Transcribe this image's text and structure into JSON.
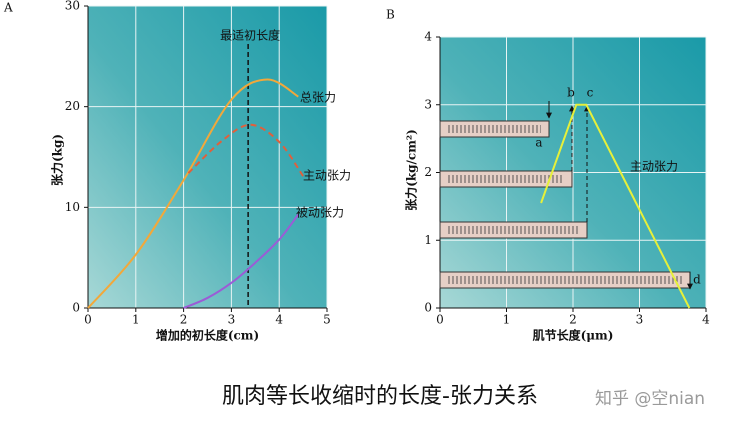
{
  "chart_data": [
    {
      "type": "line",
      "panel_label": "A",
      "smooth": true,
      "grid": true,
      "x_label": "增加的初长度(cm)",
      "y_label": "张力(kg)",
      "xlim": [
        0,
        5
      ],
      "xticks": [
        0,
        1,
        2,
        3,
        4,
        5
      ],
      "ylim": [
        0,
        30
      ],
      "yticks": [
        0,
        10,
        20,
        30
      ],
      "annotations": [
        {
          "text": "最适初长度",
          "x": 3.35
        }
      ],
      "series": [
        {
          "name": "总张力",
          "color": "#f2a83a",
          "style": "solid",
          "x": [
            0,
            1,
            2,
            3,
            3.75,
            4.4
          ],
          "values": [
            0,
            5.3,
            12.7,
            20.7,
            22.7,
            21
          ]
        },
        {
          "name": "主动张力",
          "color": "#e0603c",
          "style": "dashed",
          "x": [
            2.1,
            2.8,
            3.4,
            4,
            4.5
          ],
          "values": [
            13.4,
            16.6,
            18.2,
            16.5,
            13.1
          ]
        },
        {
          "name": "被动张力",
          "color": "#9b5cd6",
          "style": "solid",
          "x": [
            2,
            2.5,
            3,
            3.5,
            4,
            4.4
          ],
          "values": [
            0,
            1,
            2.5,
            4.5,
            6.8,
            9.3
          ]
        }
      ]
    },
    {
      "type": "line",
      "panel_label": "B",
      "smooth": false,
      "grid": true,
      "x_label": "肌节长度(μm)",
      "y_label": "张力(kg/cm²)",
      "xlim": [
        0,
        4
      ],
      "xticks": [
        0,
        1,
        2,
        3,
        4
      ],
      "ylim": [
        0,
        4
      ],
      "yticks": [
        0,
        1,
        2,
        3,
        4
      ],
      "point_labels": [
        "a",
        "b",
        "c",
        "d"
      ],
      "series": [
        {
          "name": "主动张力",
          "color": "#e6f03a",
          "style": "solid",
          "x": [
            1.52,
            2.05,
            2.2,
            3.75
          ],
          "values": [
            1.55,
            3.0,
            3.0,
            0
          ]
        }
      ]
    }
  ],
  "caption": "肌肉等长收缩时的长度-张力关系",
  "watermark": "知乎 @空nian"
}
